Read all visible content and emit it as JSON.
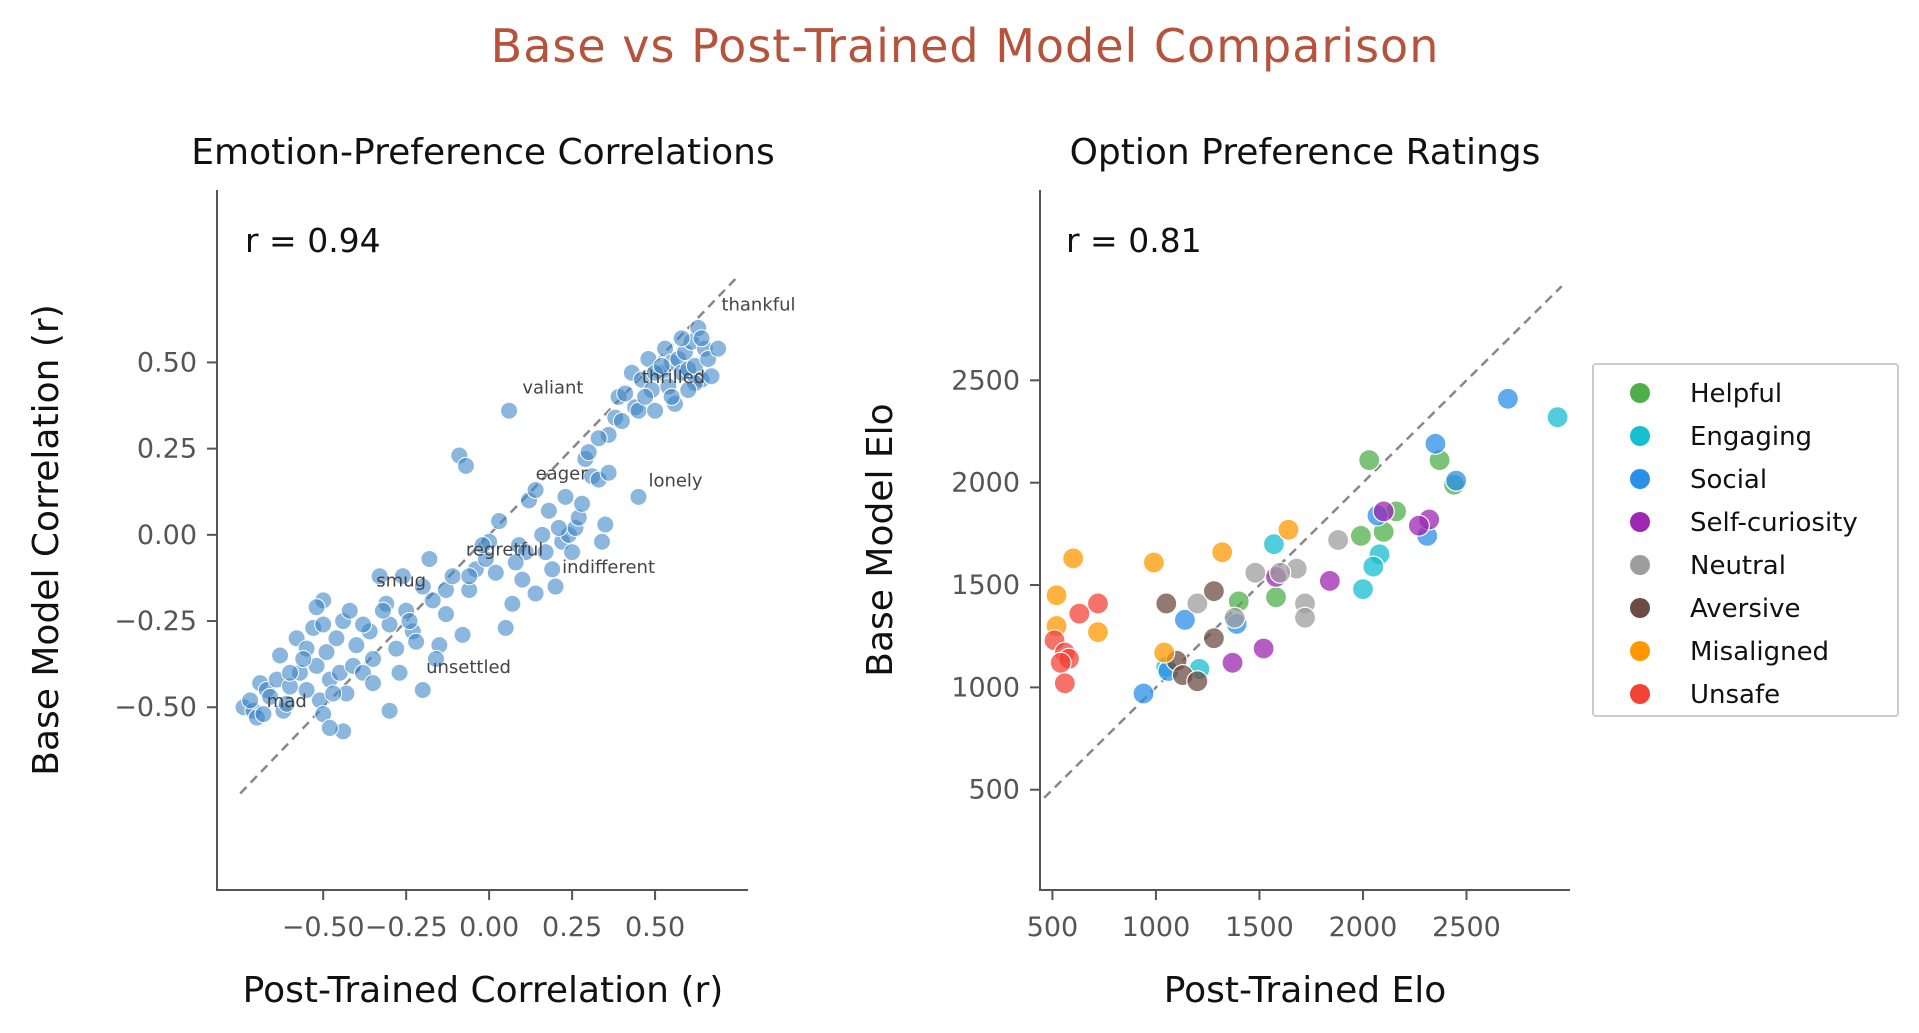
{
  "suptitle": "Base vs Post-Trained Model Comparison",
  "chart_data": [
    {
      "type": "scatter",
      "title": "Emotion-Preference Correlations",
      "xlabel": "Post-Trained Correlation (r)",
      "ylabel": "Base Model Correlation (r)",
      "xlim": [
        -0.82,
        0.78
      ],
      "ylim": [
        -1.03,
        1.0
      ],
      "xticks": [
        -0.5,
        -0.25,
        0.0,
        0.25,
        0.5
      ],
      "xtick_labels": [
        "−0.50",
        "−0.25",
        "0.00",
        "0.25",
        "0.50"
      ],
      "yticks": [
        -0.5,
        -0.25,
        0.0,
        0.25,
        0.5
      ],
      "ytick_labels": [
        "−0.50",
        "−0.25",
        "0.00",
        "0.25",
        "0.50"
      ],
      "reference_line": [
        [
          -0.75,
          -0.75
        ],
        [
          0.75,
          0.75
        ]
      ],
      "stat_label": "r = 0.94",
      "point_color": "#3d85c6",
      "annotations": [
        {
          "text": "thankful",
          "x": 0.7,
          "y": 0.65
        },
        {
          "text": "valiant",
          "x": 0.1,
          "y": 0.41
        },
        {
          "text": "thrilled",
          "x": 0.46,
          "y": 0.44
        },
        {
          "text": "eager",
          "x": 0.14,
          "y": 0.16
        },
        {
          "text": "lonely",
          "x": 0.48,
          "y": 0.14
        },
        {
          "text": "regretful",
          "x": -0.07,
          "y": -0.06
        },
        {
          "text": "indifferent",
          "x": 0.22,
          "y": -0.11
        },
        {
          "text": "smug",
          "x": -0.34,
          "y": -0.15
        },
        {
          "text": "unsettled",
          "x": -0.19,
          "y": -0.4
        },
        {
          "text": "mad",
          "x": -0.67,
          "y": -0.5
        }
      ],
      "points": [
        [
          -0.74,
          -0.5
        ],
        [
          -0.71,
          -0.51
        ],
        [
          -0.72,
          -0.48
        ],
        [
          -0.7,
          -0.53
        ],
        [
          -0.68,
          -0.52
        ],
        [
          -0.69,
          -0.43
        ],
        [
          -0.67,
          -0.45
        ],
        [
          -0.66,
          -0.47
        ],
        [
          -0.64,
          -0.42
        ],
        [
          -0.62,
          -0.51
        ],
        [
          -0.61,
          -0.49
        ],
        [
          -0.63,
          -0.35
        ],
        [
          -0.6,
          -0.44
        ],
        [
          -0.58,
          -0.3
        ],
        [
          -0.57,
          -0.4
        ],
        [
          -0.55,
          -0.33
        ],
        [
          -0.55,
          -0.45
        ],
        [
          -0.53,
          -0.27
        ],
        [
          -0.52,
          -0.38
        ],
        [
          -0.51,
          -0.48
        ],
        [
          -0.5,
          -0.26
        ],
        [
          -0.49,
          -0.34
        ],
        [
          -0.48,
          -0.42
        ],
        [
          -0.5,
          -0.19
        ],
        [
          -0.46,
          -0.3
        ],
        [
          -0.45,
          -0.4
        ],
        [
          -0.44,
          -0.25
        ],
        [
          -0.43,
          -0.46
        ],
        [
          -0.41,
          -0.38
        ],
        [
          -0.4,
          -0.32
        ],
        [
          -0.38,
          -0.4
        ],
        [
          -0.36,
          -0.28
        ],
        [
          -0.35,
          -0.36
        ],
        [
          -0.33,
          -0.12
        ],
        [
          -0.31,
          -0.2
        ],
        [
          -0.3,
          -0.26
        ],
        [
          -0.28,
          -0.33
        ],
        [
          -0.26,
          -0.12
        ],
        [
          -0.25,
          -0.22
        ],
        [
          -0.23,
          -0.28
        ],
        [
          -0.2,
          -0.15
        ],
        [
          -0.18,
          -0.07
        ],
        [
          -0.17,
          -0.19
        ],
        [
          -0.15,
          -0.32
        ],
        [
          -0.13,
          -0.16
        ],
        [
          -0.11,
          -0.12
        ],
        [
          -0.08,
          -0.29
        ],
        [
          -0.06,
          -0.16
        ],
        [
          -0.04,
          -0.1
        ],
        [
          -0.01,
          -0.07
        ],
        [
          0.0,
          -0.02
        ],
        [
          0.02,
          -0.11
        ],
        [
          0.05,
          -0.27
        ],
        [
          0.07,
          -0.2
        ],
        [
          0.09,
          -0.03
        ],
        [
          0.11,
          -0.05
        ],
        [
          0.14,
          -0.17
        ],
        [
          0.16,
          0.0
        ],
        [
          0.17,
          -0.05
        ],
        [
          0.19,
          -0.1
        ],
        [
          0.2,
          -0.15
        ],
        [
          0.22,
          -0.02
        ],
        [
          0.24,
          0.0
        ],
        [
          0.25,
          -0.05
        ],
        [
          0.26,
          0.02
        ],
        [
          0.27,
          0.05
        ],
        [
          0.29,
          0.22
        ],
        [
          0.3,
          0.24
        ],
        [
          0.31,
          0.17
        ],
        [
          0.33,
          0.16
        ],
        [
          0.34,
          -0.02
        ],
        [
          0.35,
          0.03
        ],
        [
          0.36,
          0.29
        ],
        [
          0.38,
          0.34
        ],
        [
          0.39,
          0.4
        ],
        [
          0.41,
          0.41
        ],
        [
          0.43,
          0.47
        ],
        [
          0.44,
          0.37
        ],
        [
          0.45,
          0.36
        ],
        [
          0.46,
          0.45
        ],
        [
          0.48,
          0.51
        ],
        [
          0.49,
          0.42
        ],
        [
          0.5,
          0.36
        ],
        [
          0.52,
          0.47
        ],
        [
          0.53,
          0.54
        ],
        [
          0.54,
          0.43
        ],
        [
          0.55,
          0.5
        ],
        [
          0.56,
          0.38
        ],
        [
          0.57,
          0.51
        ],
        [
          0.58,
          0.47
        ],
        [
          0.59,
          0.53
        ],
        [
          0.6,
          0.48
        ],
        [
          0.61,
          0.56
        ],
        [
          0.62,
          0.49
        ],
        [
          0.63,
          0.6
        ],
        [
          0.64,
          0.45
        ],
        [
          0.65,
          0.54
        ],
        [
          0.66,
          0.51
        ],
        [
          0.67,
          0.46
        ],
        [
          0.69,
          0.54
        ],
        [
          0.62,
          0.44
        ],
        [
          0.55,
          0.4
        ],
        [
          0.5,
          0.47
        ],
        [
          -0.09,
          0.23
        ],
        [
          -0.07,
          0.2
        ],
        [
          0.06,
          0.36
        ],
        [
          0.23,
          0.11
        ],
        [
          0.28,
          0.09
        ],
        [
          0.45,
          0.11
        ],
        [
          -0.2,
          -0.45
        ],
        [
          -0.3,
          -0.51
        ],
        [
          -0.44,
          -0.57
        ],
        [
          -0.5,
          -0.52
        ],
        [
          -0.35,
          -0.43
        ],
        [
          -0.27,
          -0.4
        ],
        [
          -0.52,
          -0.21
        ],
        [
          -0.38,
          -0.26
        ],
        [
          -0.22,
          -0.31
        ],
        [
          0.12,
          0.1
        ],
        [
          0.18,
          0.07
        ],
        [
          0.03,
          0.04
        ],
        [
          -0.02,
          -0.03
        ],
        [
          0.08,
          -0.08
        ],
        [
          0.21,
          0.02
        ],
        [
          0.14,
          0.13
        ],
        [
          0.33,
          0.28
        ],
        [
          0.36,
          0.18
        ],
        [
          0.4,
          0.33
        ],
        [
          0.47,
          0.4
        ],
        [
          0.52,
          0.49
        ],
        [
          0.58,
          0.57
        ],
        [
          0.64,
          0.57
        ],
        [
          0.6,
          0.42
        ],
        [
          -0.56,
          -0.36
        ],
        [
          -0.6,
          -0.4
        ],
        [
          -0.42,
          -0.22
        ],
        [
          -0.47,
          -0.46
        ],
        [
          -0.32,
          -0.22
        ],
        [
          -0.24,
          -0.25
        ],
        [
          -0.13,
          -0.23
        ],
        [
          -0.16,
          -0.36
        ],
        [
          -0.06,
          -0.12
        ],
        [
          0.1,
          -0.13
        ],
        [
          -0.48,
          -0.56
        ]
      ]
    },
    {
      "type": "scatter",
      "title": "Option Preference Ratings",
      "xlabel": "Post-Trained Elo",
      "ylabel": "Base Model Elo",
      "xlim": [
        440,
        3000
      ],
      "ylim": [
        10,
        3430
      ],
      "xticks": [
        500,
        1000,
        1500,
        2000,
        2500
      ],
      "xtick_labels": [
        "500",
        "1000",
        "1500",
        "2000",
        "2500"
      ],
      "yticks": [
        500,
        1000,
        1500,
        2000,
        2500
      ],
      "ytick_labels": [
        "500",
        "1000",
        "1500",
        "2000",
        "2500"
      ],
      "reference_line": [
        [
          460,
          460
        ],
        [
          2960,
          2960
        ]
      ],
      "stat_label": "r = 0.81",
      "legend_position": "right",
      "series": [
        {
          "name": "Helpful",
          "color": "#4daf4a",
          "points": [
            [
              2030,
              2110
            ],
            [
              2370,
              2110
            ],
            [
              2160,
              1860
            ],
            [
              2100,
              1760
            ],
            [
              1990,
              1740
            ],
            [
              2440,
              1990
            ],
            [
              1580,
              1440
            ],
            [
              1400,
              1420
            ]
          ]
        },
        {
          "name": "Engaging",
          "color": "#17becf",
          "points": [
            [
              2940,
              2320
            ],
            [
              1570,
              1700
            ],
            [
              2080,
              1650
            ],
            [
              2000,
              1480
            ],
            [
              2050,
              1590
            ],
            [
              1210,
              1090
            ],
            [
              1050,
              1100
            ]
          ]
        },
        {
          "name": "Social",
          "color": "#2b8fe8",
          "points": [
            [
              2700,
              2410
            ],
            [
              2350,
              2190
            ],
            [
              2450,
              2010
            ],
            [
              2070,
              1840
            ],
            [
              2310,
              1740
            ],
            [
              1140,
              1330
            ],
            [
              1390,
              1310
            ],
            [
              940,
              970
            ],
            [
              1060,
              1080
            ]
          ]
        },
        {
          "name": "Self-curiosity",
          "color": "#9c27b0",
          "points": [
            [
              2100,
              1860
            ],
            [
              2320,
              1820
            ],
            [
              2270,
              1790
            ],
            [
              1840,
              1520
            ],
            [
              1520,
              1190
            ],
            [
              1580,
              1540
            ],
            [
              1370,
              1120
            ]
          ]
        },
        {
          "name": "Neutral",
          "color": "#9e9e9e",
          "points": [
            [
              1880,
              1720
            ],
            [
              1680,
              1580
            ],
            [
              1600,
              1560
            ],
            [
              1480,
              1560
            ],
            [
              1720,
              1410
            ],
            [
              1720,
              1340
            ],
            [
              1380,
              1340
            ],
            [
              1200,
              1410
            ]
          ]
        },
        {
          "name": "Aversive",
          "color": "#6d4c41",
          "points": [
            [
              1280,
              1470
            ],
            [
              1050,
              1410
            ],
            [
              1280,
              1240
            ],
            [
              1100,
              1130
            ],
            [
              1130,
              1060
            ],
            [
              1200,
              1030
            ]
          ]
        },
        {
          "name": "Misaligned",
          "color": "#ff9800",
          "points": [
            [
              600,
              1630
            ],
            [
              990,
              1610
            ],
            [
              1320,
              1660
            ],
            [
              1640,
              1770
            ],
            [
              520,
              1450
            ],
            [
              520,
              1300
            ],
            [
              720,
              1270
            ],
            [
              1040,
              1170
            ]
          ]
        },
        {
          "name": "Unsafe",
          "color": "#f44336",
          "points": [
            [
              720,
              1410
            ],
            [
              630,
              1360
            ],
            [
              510,
              1230
            ],
            [
              560,
              1170
            ],
            [
              580,
              1140
            ],
            [
              540,
              1120
            ],
            [
              560,
              1020
            ]
          ]
        }
      ]
    }
  ]
}
